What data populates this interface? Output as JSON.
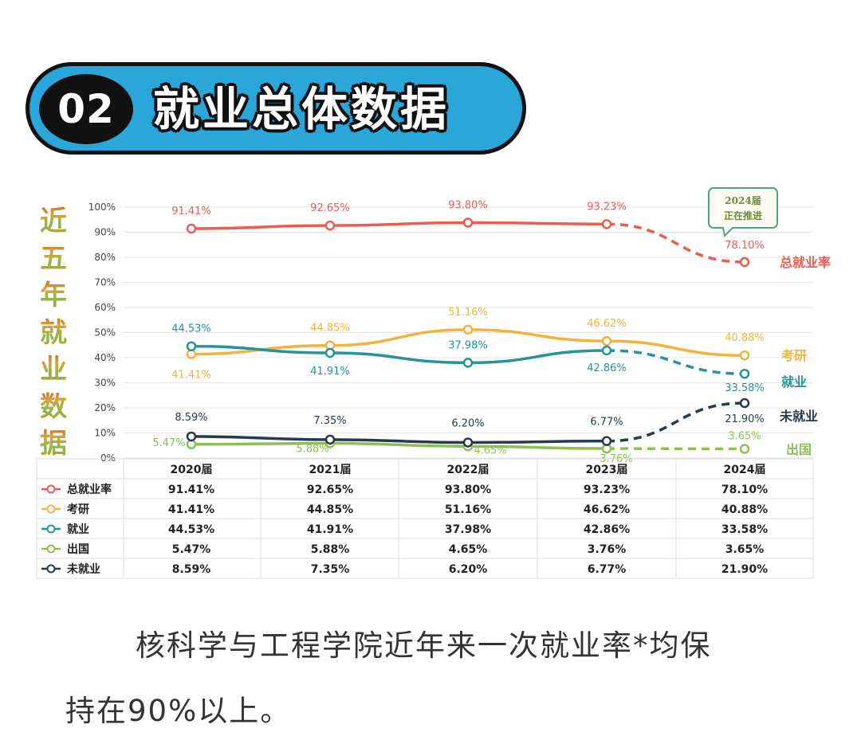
{
  "banner": {
    "number": "02",
    "title": "就业总体数据"
  },
  "side_title": [
    "近",
    "五",
    "年",
    "就",
    "业",
    "数",
    "据"
  ],
  "callout": {
    "line1": "2024届",
    "line2": "正在推进"
  },
  "colors": {
    "total": "#ef5b4f",
    "kaoyan": "#f2b33d",
    "jiuye": "#24949a",
    "chuguo": "#8cc152",
    "weijiuye": "#263b4d",
    "grid": "#e4e4e4",
    "callout_border": "#4aa87f"
  },
  "chart_data": {
    "type": "line",
    "categories": [
      "2020届",
      "2021届",
      "2022届",
      "2023届",
      "2024届"
    ],
    "yticks": [
      "0%",
      "10%",
      "20%",
      "30%",
      "40%",
      "50%",
      "60%",
      "70%",
      "80%",
      "90%",
      "100%"
    ],
    "ylim": [
      0,
      100
    ],
    "grid": true,
    "legend": "right",
    "series": [
      {
        "key": "total",
        "name": "总就业率",
        "values": [
          91.41,
          92.65,
          93.8,
          93.23,
          78.1
        ],
        "labels": [
          "91.41%",
          "92.65%",
          "93.80%",
          "93.23%",
          "78.10%"
        ],
        "dashed_last_segment": true
      },
      {
        "key": "kaoyan",
        "name": "考研",
        "values": [
          41.41,
          44.85,
          51.16,
          46.62,
          40.88
        ],
        "labels": [
          "41.41%",
          "44.85%",
          "51.16%",
          "46.62%",
          "40.88%"
        ],
        "dashed_last_segment": false
      },
      {
        "key": "jiuye",
        "name": "就业",
        "values": [
          44.53,
          41.91,
          37.98,
          42.86,
          33.58
        ],
        "labels": [
          "44.53%",
          "41.91%",
          "37.98%",
          "42.86%",
          "33.58%"
        ],
        "dashed_last_segment": true
      },
      {
        "key": "chuguo",
        "name": "出国",
        "values": [
          5.47,
          5.88,
          4.65,
          3.76,
          3.65
        ],
        "labels": [
          "5.47%",
          "5.88%",
          "4.65%",
          "3.76%",
          "3.65%"
        ],
        "dashed_last_segment": true
      },
      {
        "key": "weijiuye",
        "name": "未就业",
        "values": [
          8.59,
          7.35,
          6.2,
          6.77,
          21.9
        ],
        "labels": [
          "8.59%",
          "7.35%",
          "6.20%",
          "6.77%",
          "21.90%"
        ],
        "dashed_last_segment": true
      }
    ],
    "table": {
      "rows": [
        {
          "key": "total",
          "name": "总就业率",
          "cells": [
            "91.41%",
            "92.65%",
            "93.80%",
            "93.23%",
            "78.10%"
          ]
        },
        {
          "key": "kaoyan",
          "name": "考研",
          "cells": [
            "41.41%",
            "44.85%",
            "51.16%",
            "46.62%",
            "40.88%"
          ]
        },
        {
          "key": "jiuye",
          "name": "就业",
          "cells": [
            "44.53%",
            "41.91%",
            "37.98%",
            "42.86%",
            "33.58%"
          ]
        },
        {
          "key": "chuguo",
          "name": "出国",
          "cells": [
            "5.47%",
            "5.88%",
            "4.65%",
            "3.76%",
            "3.65%"
          ]
        },
        {
          "key": "weijiuye",
          "name": "未就业",
          "cells": [
            "8.59%",
            "7.35%",
            "6.20%",
            "6.77%",
            "21.90%"
          ]
        }
      ]
    }
  },
  "caption": {
    "line1": "核科学与工程学院近年来一次就业率*均保",
    "line2": "持在90%以上。"
  }
}
